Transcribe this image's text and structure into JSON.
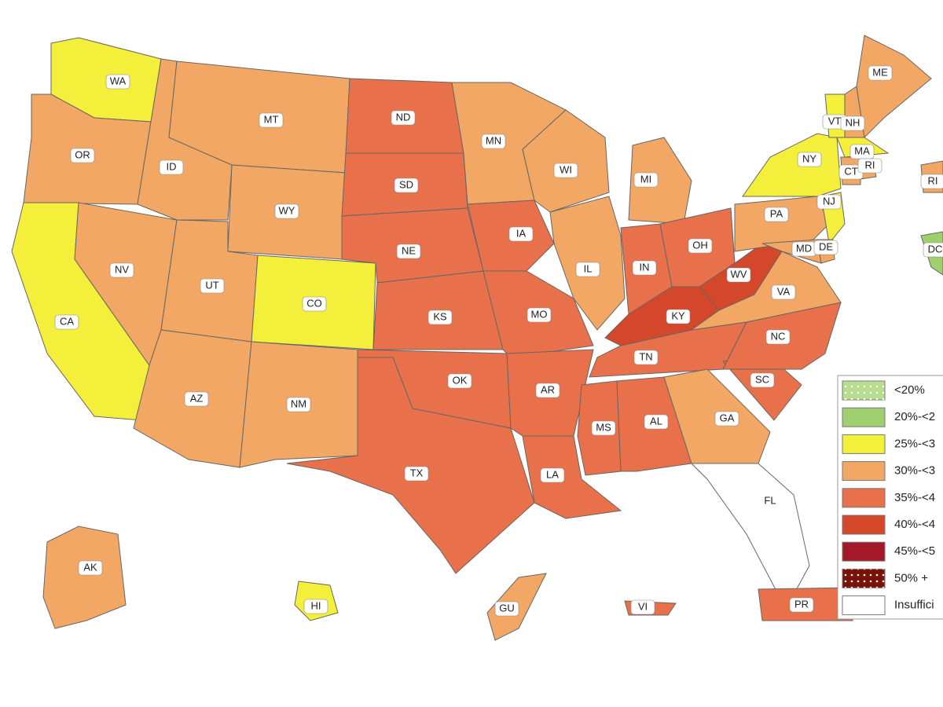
{
  "map": {
    "regions": [
      {
        "label": "WA",
        "color": "#f3ef3b"
      },
      {
        "label": "OR",
        "color": "#f2a864"
      },
      {
        "label": "CA",
        "color": "#f3ef3b"
      },
      {
        "label": "NV",
        "color": "#f2a864"
      },
      {
        "label": "ID",
        "color": "#f2a864"
      },
      {
        "label": "MT",
        "color": "#f2a864"
      },
      {
        "label": "WY",
        "color": "#f2a864"
      },
      {
        "label": "UT",
        "color": "#f2a864"
      },
      {
        "label": "CO",
        "color": "#f3ef3b"
      },
      {
        "label": "AZ",
        "color": "#f2a864"
      },
      {
        "label": "NM",
        "color": "#f2a864"
      },
      {
        "label": "ND",
        "color": "#e8704a"
      },
      {
        "label": "SD",
        "color": "#e8704a"
      },
      {
        "label": "NE",
        "color": "#e8704a"
      },
      {
        "label": "KS",
        "color": "#e8704a"
      },
      {
        "label": "OK",
        "color": "#e8704a"
      },
      {
        "label": "TX",
        "color": "#e8704a"
      },
      {
        "label": "MN",
        "color": "#f2a864"
      },
      {
        "label": "IA",
        "color": "#e8704a"
      },
      {
        "label": "MO",
        "color": "#e8704a"
      },
      {
        "label": "AR",
        "color": "#e8704a"
      },
      {
        "label": "LA",
        "color": "#e8704a"
      },
      {
        "label": "WI",
        "color": "#f2a864"
      },
      {
        "label": "IL",
        "color": "#f2a864"
      },
      {
        "label": "MI",
        "color": "#f2a864"
      },
      {
        "label": "IN",
        "color": "#e8704a"
      },
      {
        "label": "OH",
        "color": "#e8704a"
      },
      {
        "label": "KY",
        "color": "#d4472b"
      },
      {
        "label": "WV",
        "color": "#d4472b"
      },
      {
        "label": "TN",
        "color": "#e8704a"
      },
      {
        "label": "MS",
        "color": "#e8704a"
      },
      {
        "label": "AL",
        "color": "#e8704a"
      },
      {
        "label": "GA",
        "color": "#f2a864"
      },
      {
        "label": "SC",
        "color": "#e8704a"
      },
      {
        "label": "NC",
        "color": "#e8704a"
      },
      {
        "label": "VA",
        "color": "#f2a864"
      },
      {
        "label": "PA",
        "color": "#f2a864"
      },
      {
        "label": "NY",
        "color": "#f3ef3b"
      },
      {
        "label": "NJ",
        "color": "#f3ef3b"
      },
      {
        "label": "MD",
        "color": "#f2a864"
      },
      {
        "label": "DE",
        "color": "#f2a864"
      },
      {
        "label": "VT",
        "color": "#f3ef3b"
      },
      {
        "label": "NH",
        "color": "#f2a864"
      },
      {
        "label": "ME",
        "color": "#f2a864"
      },
      {
        "label": "MA",
        "color": "#f3ef3b"
      },
      {
        "label": "CT",
        "color": "#f2a864"
      },
      {
        "label": "RI",
        "color": "#f2a864"
      },
      {
        "label": "FL",
        "color": "#ffffff"
      },
      {
        "label": "AK",
        "color": "#f2a864"
      },
      {
        "label": "HI",
        "color": "#f3ef3b"
      },
      {
        "label": "GU",
        "color": "#f2a864"
      },
      {
        "label": "PR",
        "color": "#e8704a"
      },
      {
        "label": "VI",
        "color": "#e8704a"
      },
      {
        "label": "RI",
        "color": "#f2a864"
      },
      {
        "label": "DC",
        "color": "#a0cf70"
      }
    ],
    "legend": [
      {
        "label": "<20%",
        "color": "#b9dd8e",
        "pattern": "dots"
      },
      {
        "label": "20%-<2",
        "color": "#a0cf70"
      },
      {
        "label": "25%-<3",
        "color": "#f3ef3b"
      },
      {
        "label": "30%-<3",
        "color": "#f2a864"
      },
      {
        "label": "35%-<4",
        "color": "#e8704a"
      },
      {
        "label": "40%-<4",
        "color": "#d4472b"
      },
      {
        "label": "45%-<5",
        "color": "#a3192a"
      },
      {
        "label": "50% +",
        "color": "#7a1208",
        "pattern": "dots"
      },
      {
        "label": "Insuffici",
        "color": "#ffffff"
      }
    ]
  }
}
